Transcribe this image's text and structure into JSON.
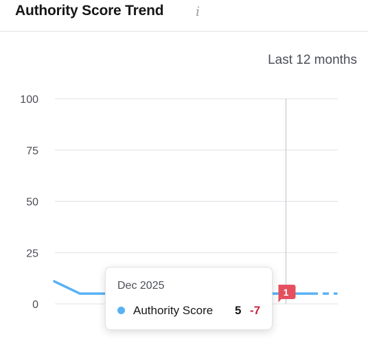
{
  "widget": {
    "title": "Authority Score Trend",
    "info_icon": "info-icon",
    "period": "Last 12 months"
  },
  "tooltip": {
    "date": "Dec 2025",
    "series_name": "Authority Score",
    "value": "5",
    "delta": "-7",
    "series_color": "#58b1f4"
  },
  "marker": {
    "label": "1",
    "color": "#e5505f"
  },
  "colors": {
    "line": "#58b1f4",
    "grid": "#dfe0e4",
    "crosshair": "#c5c7cd"
  },
  "chart_data": {
    "type": "line",
    "ylim": [
      0,
      100
    ],
    "y_ticks": [
      "0",
      "25",
      "50",
      "75",
      "100"
    ],
    "series": [
      {
        "values": [
          11,
          5,
          5,
          5,
          5,
          5,
          5,
          5,
          5,
          5,
          5
        ],
        "projected": [
          5,
          5
        ]
      }
    ],
    "highlight_index": 9
  }
}
